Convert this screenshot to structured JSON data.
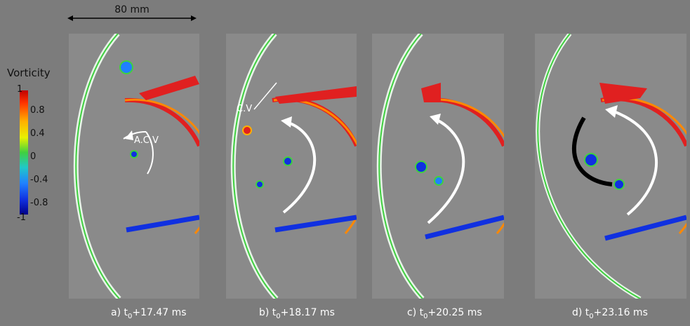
{
  "scale_bar": {
    "label": "80 mm"
  },
  "colorbar": {
    "title": "Vorticity",
    "ticks": [
      "1",
      "0.8",
      "0.4",
      "0",
      "-0.4",
      "-0.8",
      "-1"
    ]
  },
  "panels": [
    {
      "caption_prefix": "a) t",
      "caption_sub": "0",
      "caption_suffix": "+17.47 ms",
      "annotation": "A.C.V"
    },
    {
      "caption_prefix": "b) t",
      "caption_sub": "0",
      "caption_suffix": "+18.17 ms",
      "annotation": "C.V"
    },
    {
      "caption_prefix": "c) t",
      "caption_sub": "0",
      "caption_suffix": "+20.25 ms",
      "annotation": ""
    },
    {
      "caption_prefix": "d) t",
      "caption_sub": "0",
      "caption_suffix": "+23.16 ms",
      "annotation": ""
    }
  ],
  "colors": {
    "background": "#7c7c7c",
    "positive_vorticity": "#e02020",
    "negative_vorticity": "#1030e0",
    "contour": "#40d040"
  }
}
